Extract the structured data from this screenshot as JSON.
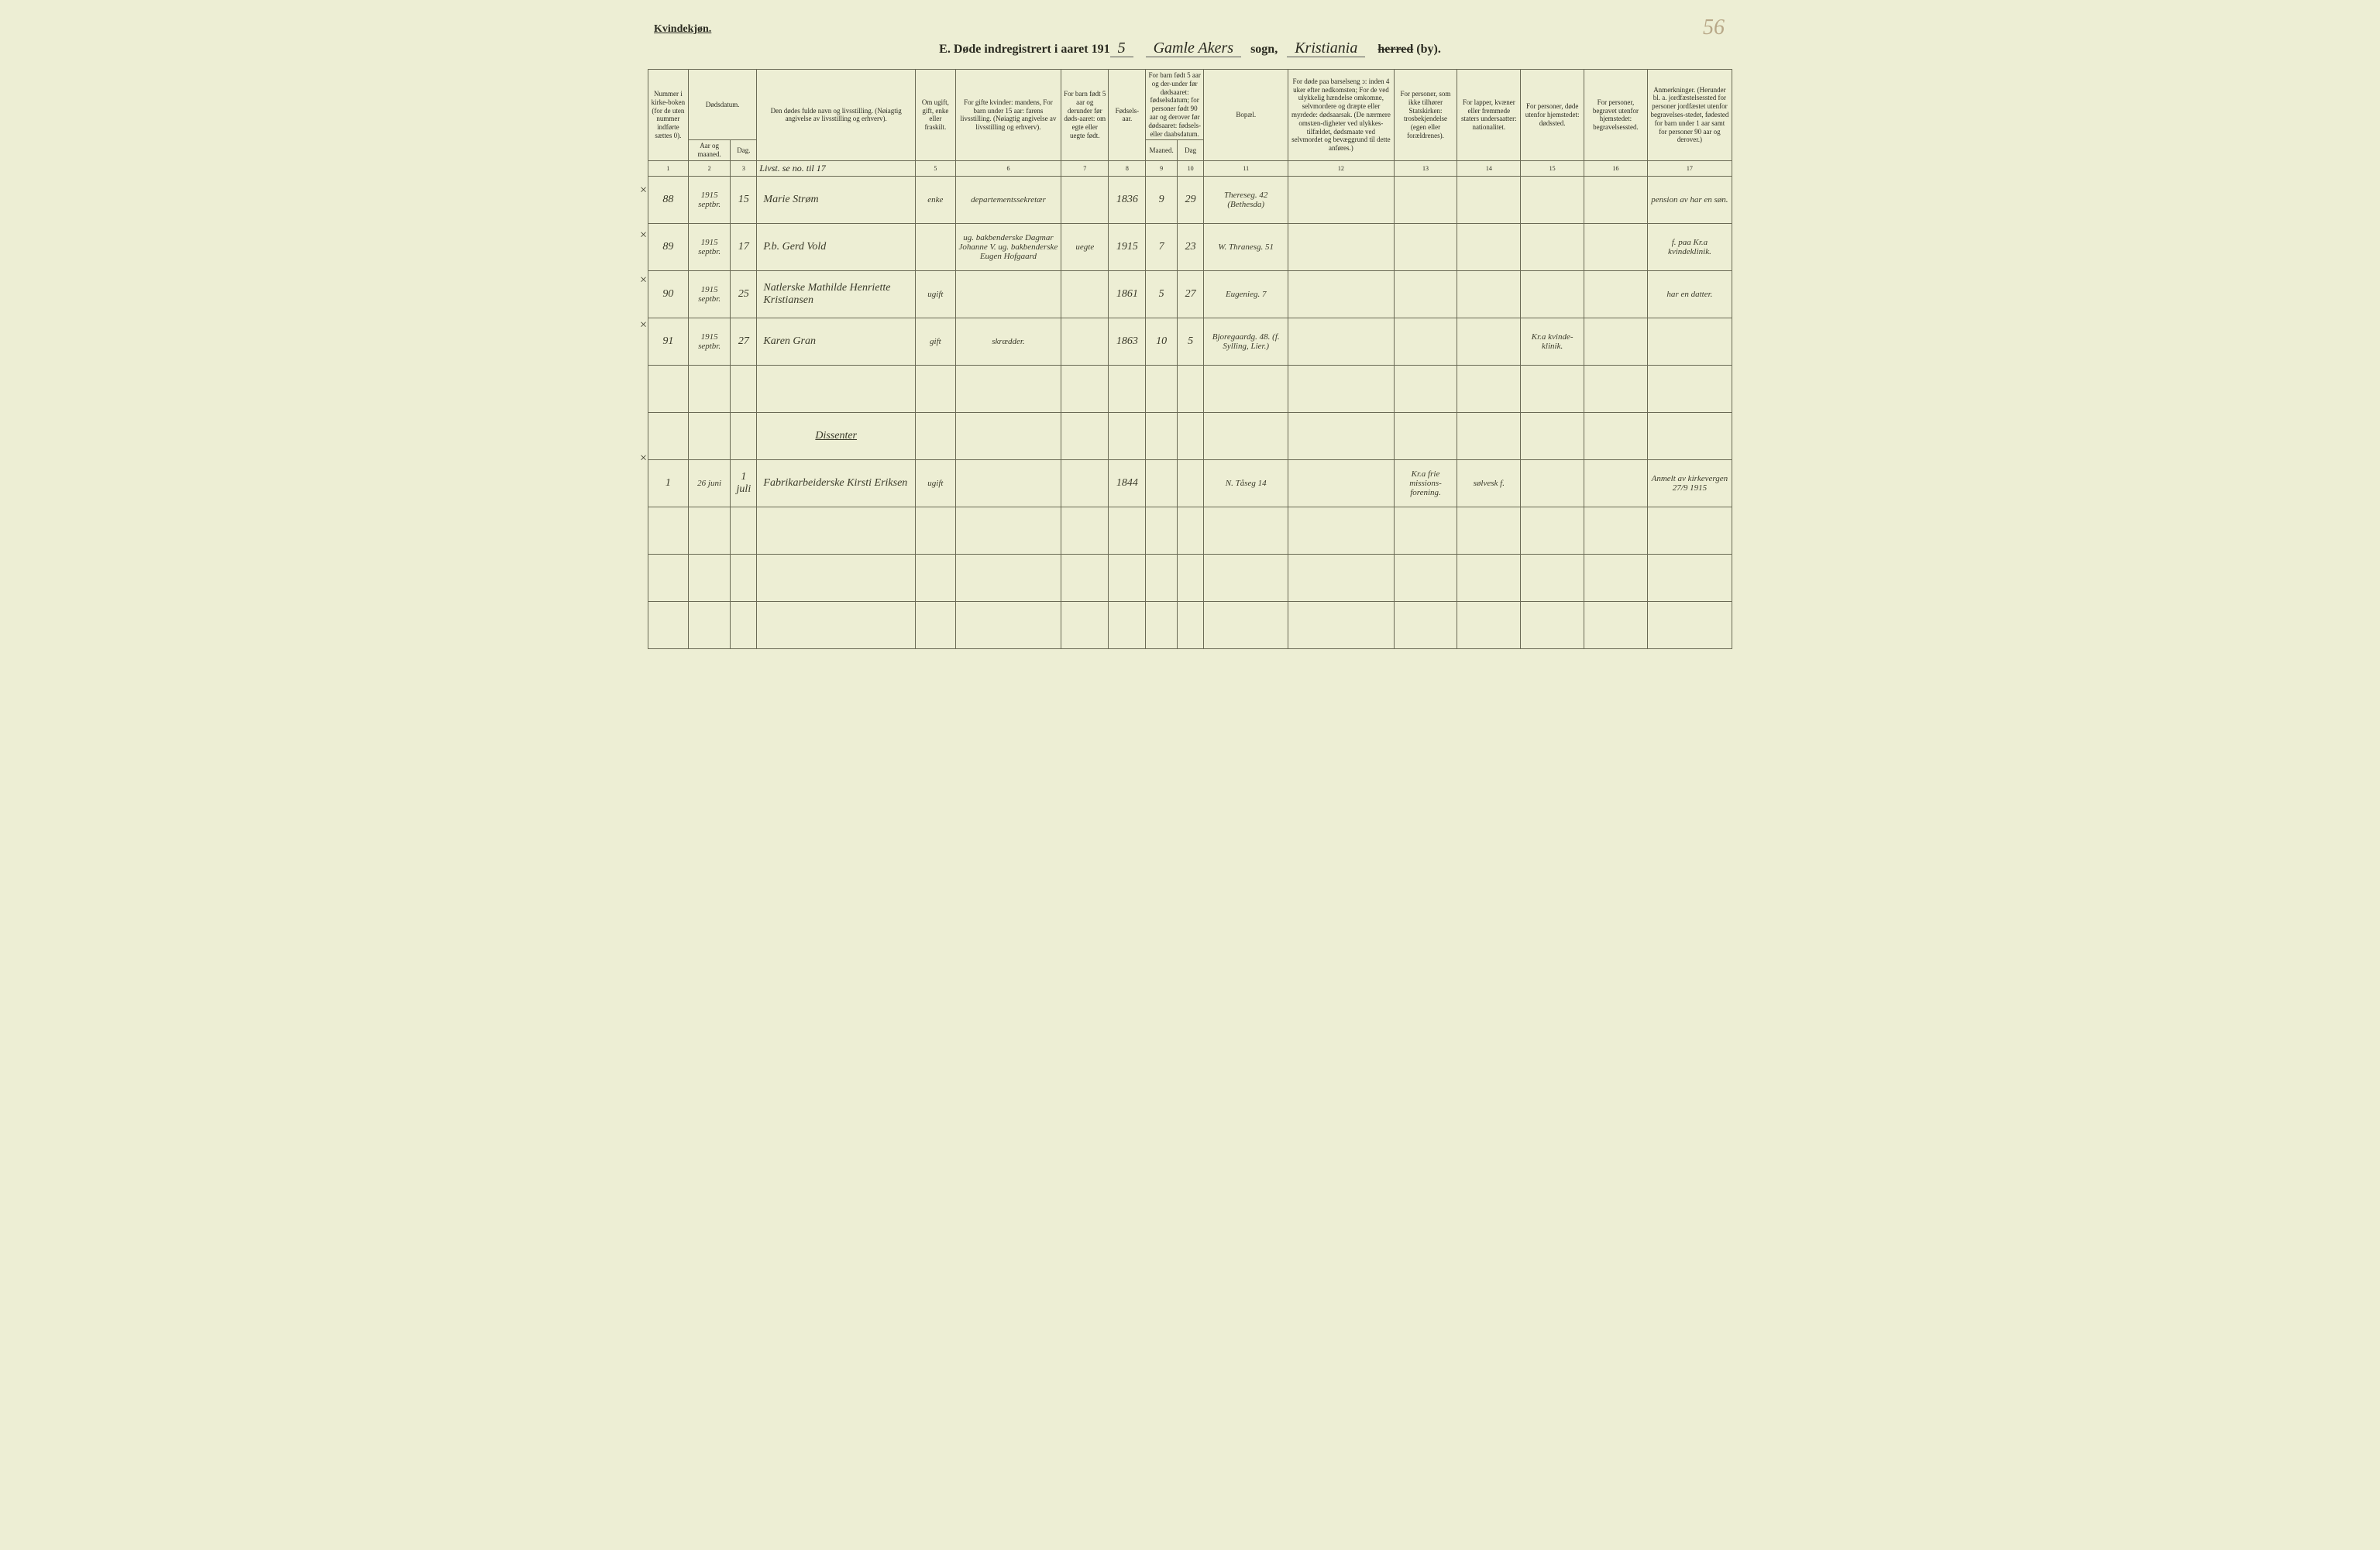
{
  "page_number_corner": "56",
  "top_left_label": "Kvindekjøn.",
  "title": {
    "prefix": "E.  Døde indregistrert i aaret 191",
    "year_suffix": "5",
    "word_sogn": "sogn,",
    "word_herred": "herred",
    "word_by": "(by).",
    "parish_cursive": "Gamle Akers",
    "district_cursive": "Kristiania"
  },
  "headers": {
    "c1": "Nummer i kirke-boken (for de uten nummer indførte sættes 0).",
    "c2a": "Dødsdatum.",
    "c2b": "Aar og maaned.",
    "c2c": "Dag.",
    "c4": "Den dødes fulde navn og livsstilling. (Nøiagtig angivelse av livsstilling og erhverv).",
    "c5": "Om ugift, gift, enke eller fraskilt.",
    "c6": "For gifte kvinder: mandens, For barn under 15 aar: farens livsstilling. (Nøiagtig angivelse av livsstilling og erhverv).",
    "c7": "For barn født 5 aar og derunder før døds-aaret: om egte eller uegte født.",
    "c8": "Fødsels-aar.",
    "c9a": "For barn født 5 aar og der-under før dødsaaret: fødselsdatum; for personer født 90 aar og derover før dødsaaret: fødsels- eller daabsdatum.",
    "c9b": "Maaned.",
    "c9c": "Dag",
    "c11": "Bopæl.",
    "c12": "For døde paa barselseng ↄ: inden 4 uker efter nedkomsten; For de ved ulykkelig hændelse omkomne, selvmordere og dræpte eller myrdede: dødsaarsak. (De nærmere omstæn-digheter ved ulykkes-tilfældet, dødsmaate ved selvmordet og bevæggrund til dette anføres.)",
    "c13": "For personer, som ikke tilhører Statskirken: trosbekjendelse (egen eller forældrenes).",
    "c14": "For lapper, kvæner eller fremmede staters undersaatter: nationalitet.",
    "c15": "For personer, døde utenfor hjemstedet: dødssted.",
    "c16": "For personer, begravet utenfor hjemstedet: begravelsessted.",
    "c17": "Anmerkninger. (Herunder bl. a. jordfæstelsessted for personer jordfæstet utenfor begravelses-stedet, fødested for barn under 1 aar samt for personer 90 aar og derover.)"
  },
  "colnums": [
    "1",
    "2",
    "3",
    "",
    "5",
    "6",
    "7",
    "8",
    "9",
    "10",
    "11",
    "12",
    "13",
    "14",
    "15",
    "16",
    "17"
  ],
  "note_above_row1": "Livst. se no. til 17",
  "rows": [
    {
      "mark": "×",
      "num": "88",
      "year_month": "1915 septbr.",
      "day": "15",
      "name": "Marie Strøm",
      "status": "enke",
      "c6": "departementssekretær",
      "c7": "",
      "c8": "1836",
      "c9": "9",
      "c10": "29",
      "address": "Thereseg. 42 (Bethesda)",
      "c12": "",
      "c13": "",
      "c14": "",
      "c15": "",
      "c16": "",
      "notes": "pension av har en søn."
    },
    {
      "mark": "×",
      "num": "89",
      "year_month": "1915 septbr.",
      "day": "17",
      "name": "P.b. Gerd Vold",
      "status": "",
      "c6": "ug. bakbenderske Dagmar Johanne V. ug. bakbenderske Eugen Hofgaard",
      "c7": "uegte",
      "c8": "1915",
      "c9": "7",
      "c10": "23",
      "address": "W. Thranesg. 51",
      "c12": "",
      "c13": "",
      "c14": "",
      "c15": "",
      "c16": "",
      "notes": "f. paa Kr.a kvindeklinik."
    },
    {
      "mark": "×",
      "num": "90",
      "year_month": "1915 septbr.",
      "day": "25",
      "name": "Natlerske Mathilde Henriette Kristiansen",
      "status": "ugift",
      "c6": "",
      "c7": "",
      "c8": "1861",
      "c9": "5",
      "c10": "27",
      "address": "Eugenieg. 7",
      "c12": "",
      "c13": "",
      "c14": "",
      "c15": "",
      "c16": "",
      "notes": "har en datter."
    },
    {
      "mark": "×",
      "num": "91",
      "year_month": "1915 septbr.",
      "day": "27",
      "name": "Karen Gran",
      "status": "gift",
      "c6": "skrædder.",
      "c7": "",
      "c8": "1863",
      "c9": "10",
      "c10": "5",
      "address": "Bjoregaardg. 48. (f. Sylling, Lier.)",
      "c12": "",
      "c13": "",
      "c14": "",
      "c15": "Kr.a kvinde-klinik.",
      "c16": "",
      "notes": ""
    }
  ],
  "dissenter_heading": "Dissenter",
  "dissenter_row": {
    "mark": "×",
    "num": "1",
    "year_month": "26 juni",
    "day": "1 juli",
    "name": "Fabrikarbeiderske Kirsti Eriksen",
    "status": "ugift",
    "c6": "",
    "c7": "",
    "c8": "1844",
    "c9": "",
    "c10": "",
    "address": "N. Tåseg 14",
    "c12": "",
    "c13": "Kr.a frie missions-forening.",
    "c14": "sølvesk f.",
    "c15": "",
    "c16": "",
    "notes": "Anmelt av kirkevergen 27/9 1915"
  },
  "col_widths_pct": [
    3.8,
    4.0,
    2.5,
    15.0,
    3.8,
    10.0,
    4.5,
    3.5,
    3.0,
    2.5,
    8.0,
    10.0,
    6.0,
    6.0,
    6.0,
    6.0,
    8.0
  ],
  "colors": {
    "paper": "#edeed4",
    "ink": "#2a2a20",
    "rule": "#6a6a55",
    "pencil": "#b8a888"
  }
}
